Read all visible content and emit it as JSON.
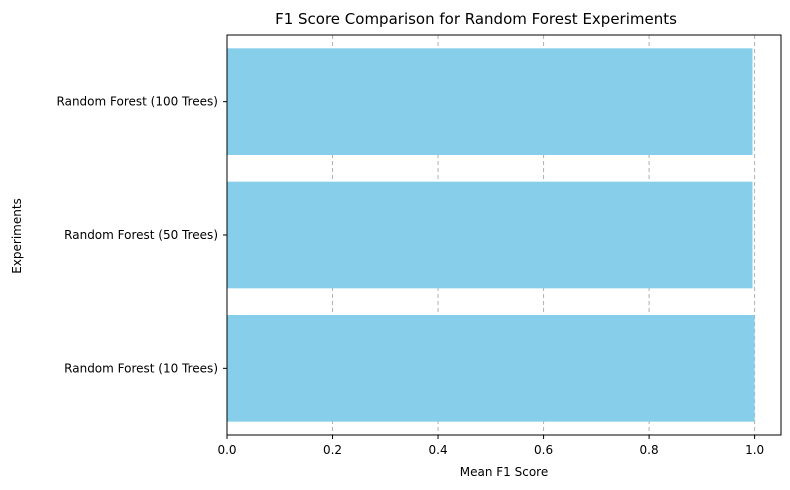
{
  "chart_data": {
    "type": "bar",
    "orientation": "horizontal",
    "title": "F1 Score Comparison for Random Forest Experiments",
    "xlabel": "Mean F1 Score",
    "ylabel": "Experiments",
    "categories": [
      "Random Forest (10 Trees)",
      "Random Forest (50 Trees)",
      "Random Forest (100 Trees)"
    ],
    "values": [
      1.0,
      0.996,
      0.996
    ],
    "xlim": [
      0,
      1.05
    ],
    "xticks": [
      "0.0",
      "0.2",
      "0.4",
      "0.6",
      "0.8",
      "1.0"
    ],
    "xtick_values": [
      0.0,
      0.2,
      0.4,
      0.6,
      0.8,
      1.0
    ],
    "grid": "x-axis dashed",
    "bar_color": "#87ceeb"
  }
}
